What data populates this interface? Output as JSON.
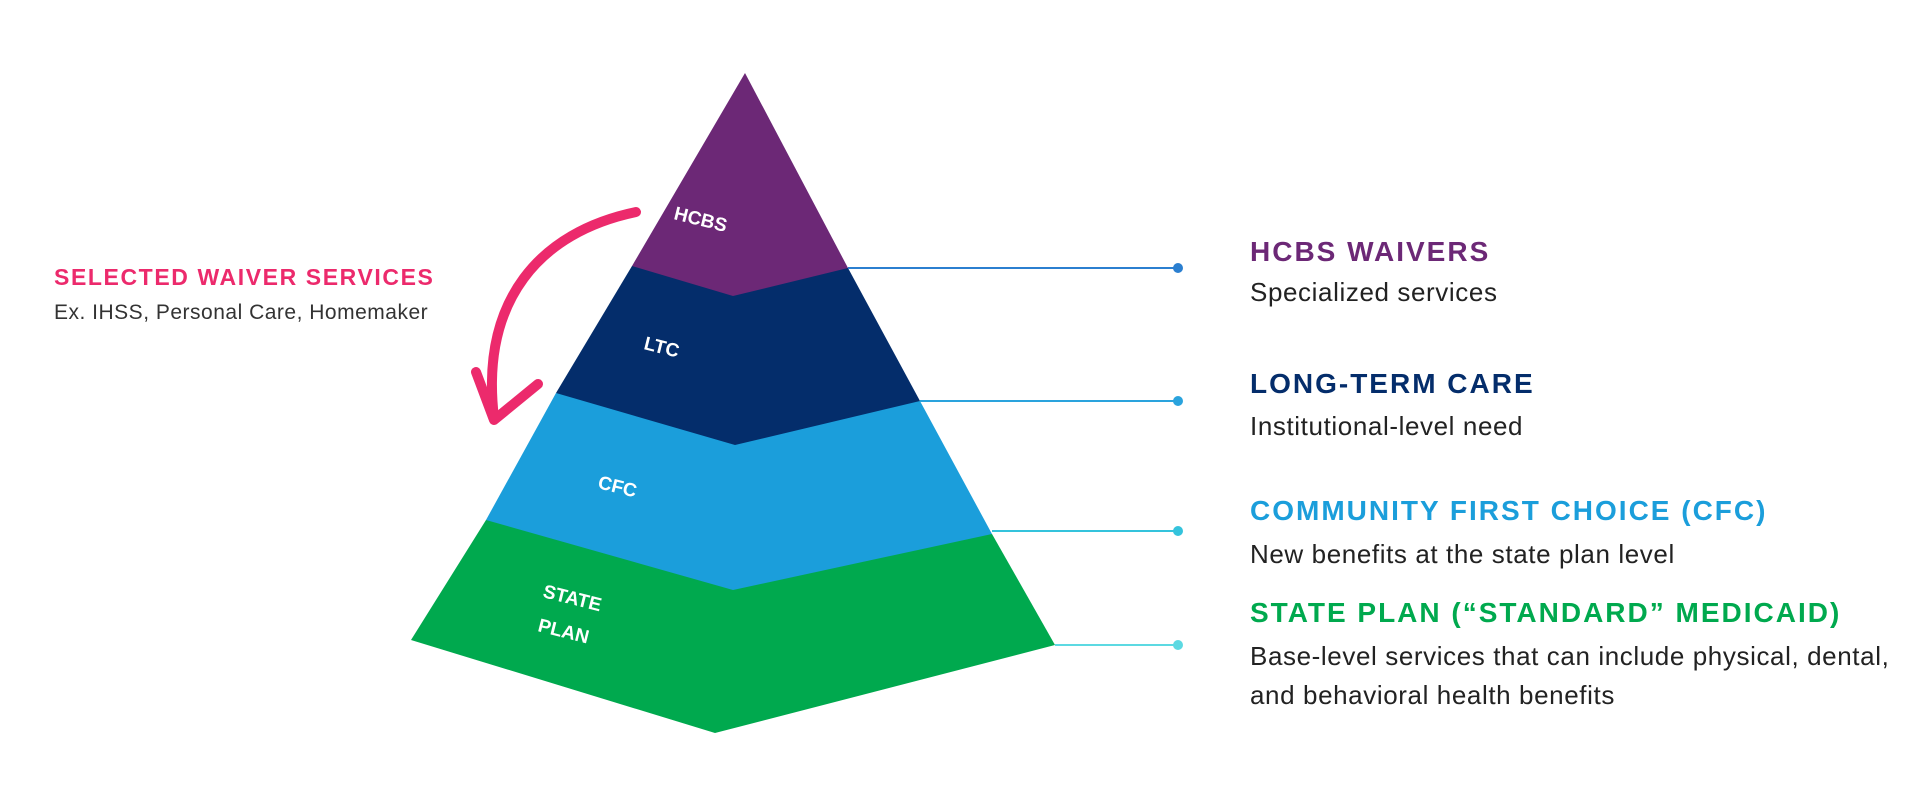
{
  "colors": {
    "hcbs": "#6c2876",
    "ltc": "#042d6b",
    "cfc": "#1b9edb",
    "state_plan": "#00a94e",
    "accent_pink": "#ec2a6c",
    "connector_1": "#2b7fd0",
    "connector_2": "#2aa3dd",
    "connector_3": "#34c3dc",
    "connector_4": "#5cd9e2"
  },
  "pyramid": {
    "layers": [
      {
        "id": "hcbs",
        "label": "HCBS"
      },
      {
        "id": "ltc",
        "label": "LTC"
      },
      {
        "id": "cfc",
        "label": "CFC"
      },
      {
        "id": "state_plan",
        "label_line1": "STATE",
        "label_line2": "PLAN"
      }
    ]
  },
  "side_note": {
    "title": "SELECTED WAIVER SERVICES",
    "subtitle": "Ex. IHSS, Personal Care, Homemaker",
    "arrow_icon": "curved-arrow-down-icon"
  },
  "legend": [
    {
      "title": "HCBS WAIVERS",
      "description": "Specialized services"
    },
    {
      "title": "LONG-TERM CARE",
      "description": "Institutional-level need"
    },
    {
      "title": "COMMUNITY FIRST CHOICE (CFC)",
      "description": "New benefits at the state plan level"
    },
    {
      "title": "STATE PLAN (“STANDARD” MEDICAID)",
      "description": "Base-level services that can include physical, dental, and behavioral health benefits"
    }
  ]
}
